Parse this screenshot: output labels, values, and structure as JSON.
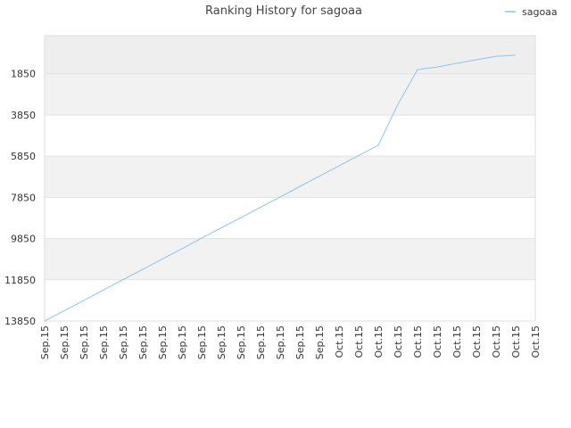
{
  "chart_data": {
    "type": "line",
    "title": "Ranking History for sagoaa",
    "categories": [
      "Sep.15",
      "Sep.15",
      "Sep.15",
      "Sep.15",
      "Sep.15",
      "Sep.15",
      "Sep.15",
      "Sep.15",
      "Sep.15",
      "Sep.15",
      "Sep.15",
      "Sep.15",
      "Sep.15",
      "Sep.15",
      "Sep.15",
      "Oct.15",
      "Oct.15",
      "Oct.15",
      "Oct.15",
      "Oct.15",
      "Oct.15",
      "Oct.15",
      "Oct.15",
      "Oct.15",
      "Oct.15",
      "Oct.15"
    ],
    "series": [
      {
        "name": "sagoaa",
        "color": "#8cc4f0",
        "values": [
          13850,
          13350,
          12850,
          12340,
          11840,
          11340,
          10840,
          10340,
          9830,
          9330,
          8830,
          8330,
          7830,
          7320,
          6820,
          6320,
          5820,
          5320,
          3330,
          1650,
          1520,
          1340,
          1170,
          1000,
          950,
          null
        ]
      }
    ],
    "ylim": [
      13850,
      0
    ],
    "yticks": [
      1850,
      3850,
      5850,
      7850,
      9850,
      11850,
      13850
    ],
    "grid": true,
    "legend": "top-right"
  }
}
